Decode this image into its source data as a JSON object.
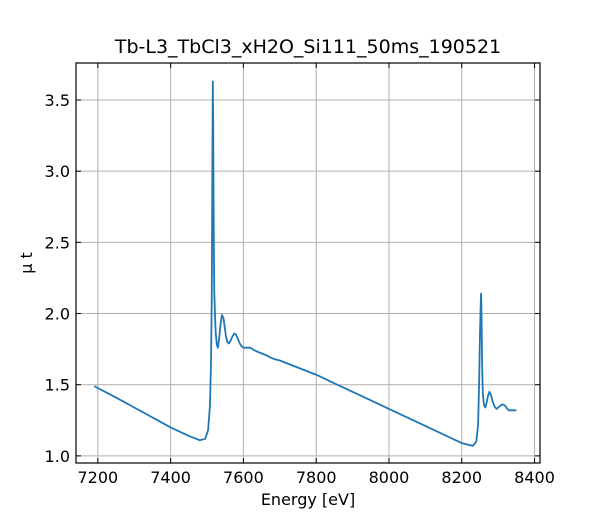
{
  "chart_data": {
    "type": "line",
    "title": "Tb-L3_TbCl3_xH2O_Si111_50ms_190521",
    "xlabel": "Energy [eV]",
    "ylabel": "μ t",
    "xlim": [
      7140,
      8415
    ],
    "ylim": [
      0.95,
      3.76
    ],
    "xticks": [
      7200,
      7400,
      7600,
      7800,
      8000,
      8200,
      8400
    ],
    "yticks": [
      1.0,
      1.5,
      2.0,
      2.5,
      3.0,
      3.5
    ],
    "xtick_labels": [
      "7200",
      "7400",
      "7600",
      "7800",
      "8000",
      "8200",
      "8400"
    ],
    "ytick_labels": [
      "1.0",
      "1.5",
      "2.0",
      "2.5",
      "3.0",
      "3.5"
    ],
    "grid": true,
    "color": "#1f77b4",
    "series": [
      {
        "x": [
          7190,
          7250,
          7300,
          7350,
          7400,
          7450,
          7480,
          7495,
          7503,
          7508,
          7511,
          7513,
          7514,
          7515,
          7516,
          7517,
          7518,
          7519,
          7520,
          7522,
          7524,
          7527,
          7530,
          7533,
          7537,
          7541,
          7545,
          7549,
          7552,
          7556,
          7560,
          7565,
          7570,
          7575,
          7580,
          7585,
          7590,
          7595,
          7600,
          7606,
          7612,
          7618,
          7625,
          7632,
          7640,
          7650,
          7660,
          7668,
          7675,
          7685,
          7700,
          7750,
          7800,
          7850,
          7900,
          7950,
          8000,
          8050,
          8100,
          8150,
          8200,
          8230,
          8240,
          8245,
          8248,
          8250,
          8252,
          8253,
          8254,
          8255,
          8256,
          8257,
          8258,
          8260,
          8262,
          8265,
          8268,
          8272,
          8276,
          8280,
          8284,
          8288,
          8292,
          8296,
          8300,
          8305,
          8310,
          8315,
          8320,
          8325,
          8330,
          8335,
          8340,
          8345,
          8350
        ],
        "y": [
          1.49,
          1.41,
          1.34,
          1.27,
          1.2,
          1.14,
          1.11,
          1.12,
          1.18,
          1.35,
          1.65,
          2.1,
          2.65,
          3.2,
          3.63,
          3.3,
          2.8,
          2.4,
          2.15,
          1.98,
          1.86,
          1.78,
          1.76,
          1.82,
          1.92,
          1.99,
          1.97,
          1.9,
          1.84,
          1.8,
          1.79,
          1.81,
          1.84,
          1.86,
          1.85,
          1.82,
          1.79,
          1.77,
          1.76,
          1.76,
          1.76,
          1.76,
          1.75,
          1.74,
          1.73,
          1.72,
          1.71,
          1.7,
          1.69,
          1.68,
          1.67,
          1.62,
          1.57,
          1.51,
          1.45,
          1.39,
          1.33,
          1.27,
          1.21,
          1.15,
          1.09,
          1.07,
          1.1,
          1.22,
          1.55,
          1.85,
          2.05,
          2.14,
          2.05,
          1.85,
          1.65,
          1.52,
          1.44,
          1.38,
          1.35,
          1.34,
          1.37,
          1.42,
          1.45,
          1.43,
          1.39,
          1.36,
          1.34,
          1.33,
          1.34,
          1.35,
          1.36,
          1.36,
          1.35,
          1.33,
          1.32,
          1.32,
          1.32,
          1.32,
          1.32
        ]
      }
    ]
  }
}
